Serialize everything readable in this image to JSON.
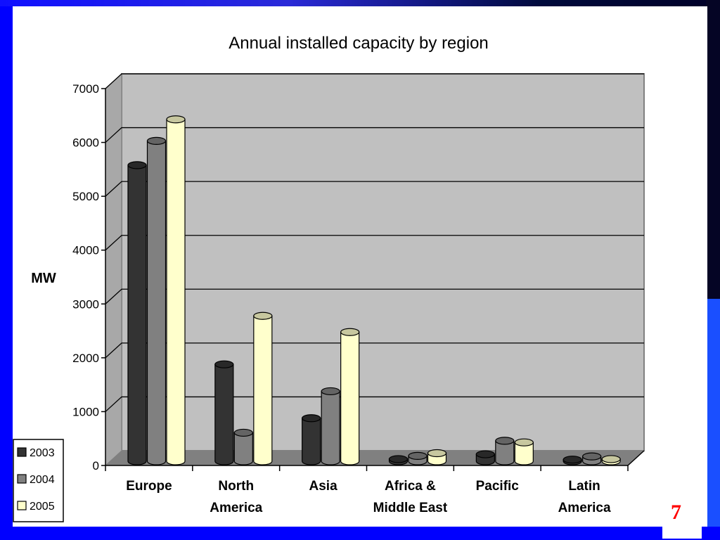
{
  "page": {
    "number": "7"
  },
  "chart_data": {
    "type": "bar",
    "title": "Annual installed capacity by region",
    "ylabel": "MW",
    "xlabel": "",
    "ylim": [
      0,
      7000
    ],
    "yticks": [
      0,
      1000,
      2000,
      3000,
      4000,
      5000,
      6000,
      7000
    ],
    "grid": true,
    "legend_position": "bottom-left",
    "categories": [
      [
        "Europe"
      ],
      [
        "North",
        "America"
      ],
      [
        "Asia"
      ],
      [
        "Africa &",
        "Middle East"
      ],
      [
        "Pacific"
      ],
      [
        "Latin",
        "America"
      ]
    ],
    "series": [
      {
        "name": "2003",
        "color": "#333333",
        "values": [
          5500,
          1800,
          800,
          40,
          130,
          30
        ]
      },
      {
        "name": "2004",
        "color": "#808080",
        "values": [
          5950,
          530,
          1300,
          100,
          380,
          90
        ]
      },
      {
        "name": "2005",
        "color": "#ffffcc",
        "values": [
          6350,
          2700,
          2400,
          150,
          350,
          40
        ]
      }
    ]
  }
}
